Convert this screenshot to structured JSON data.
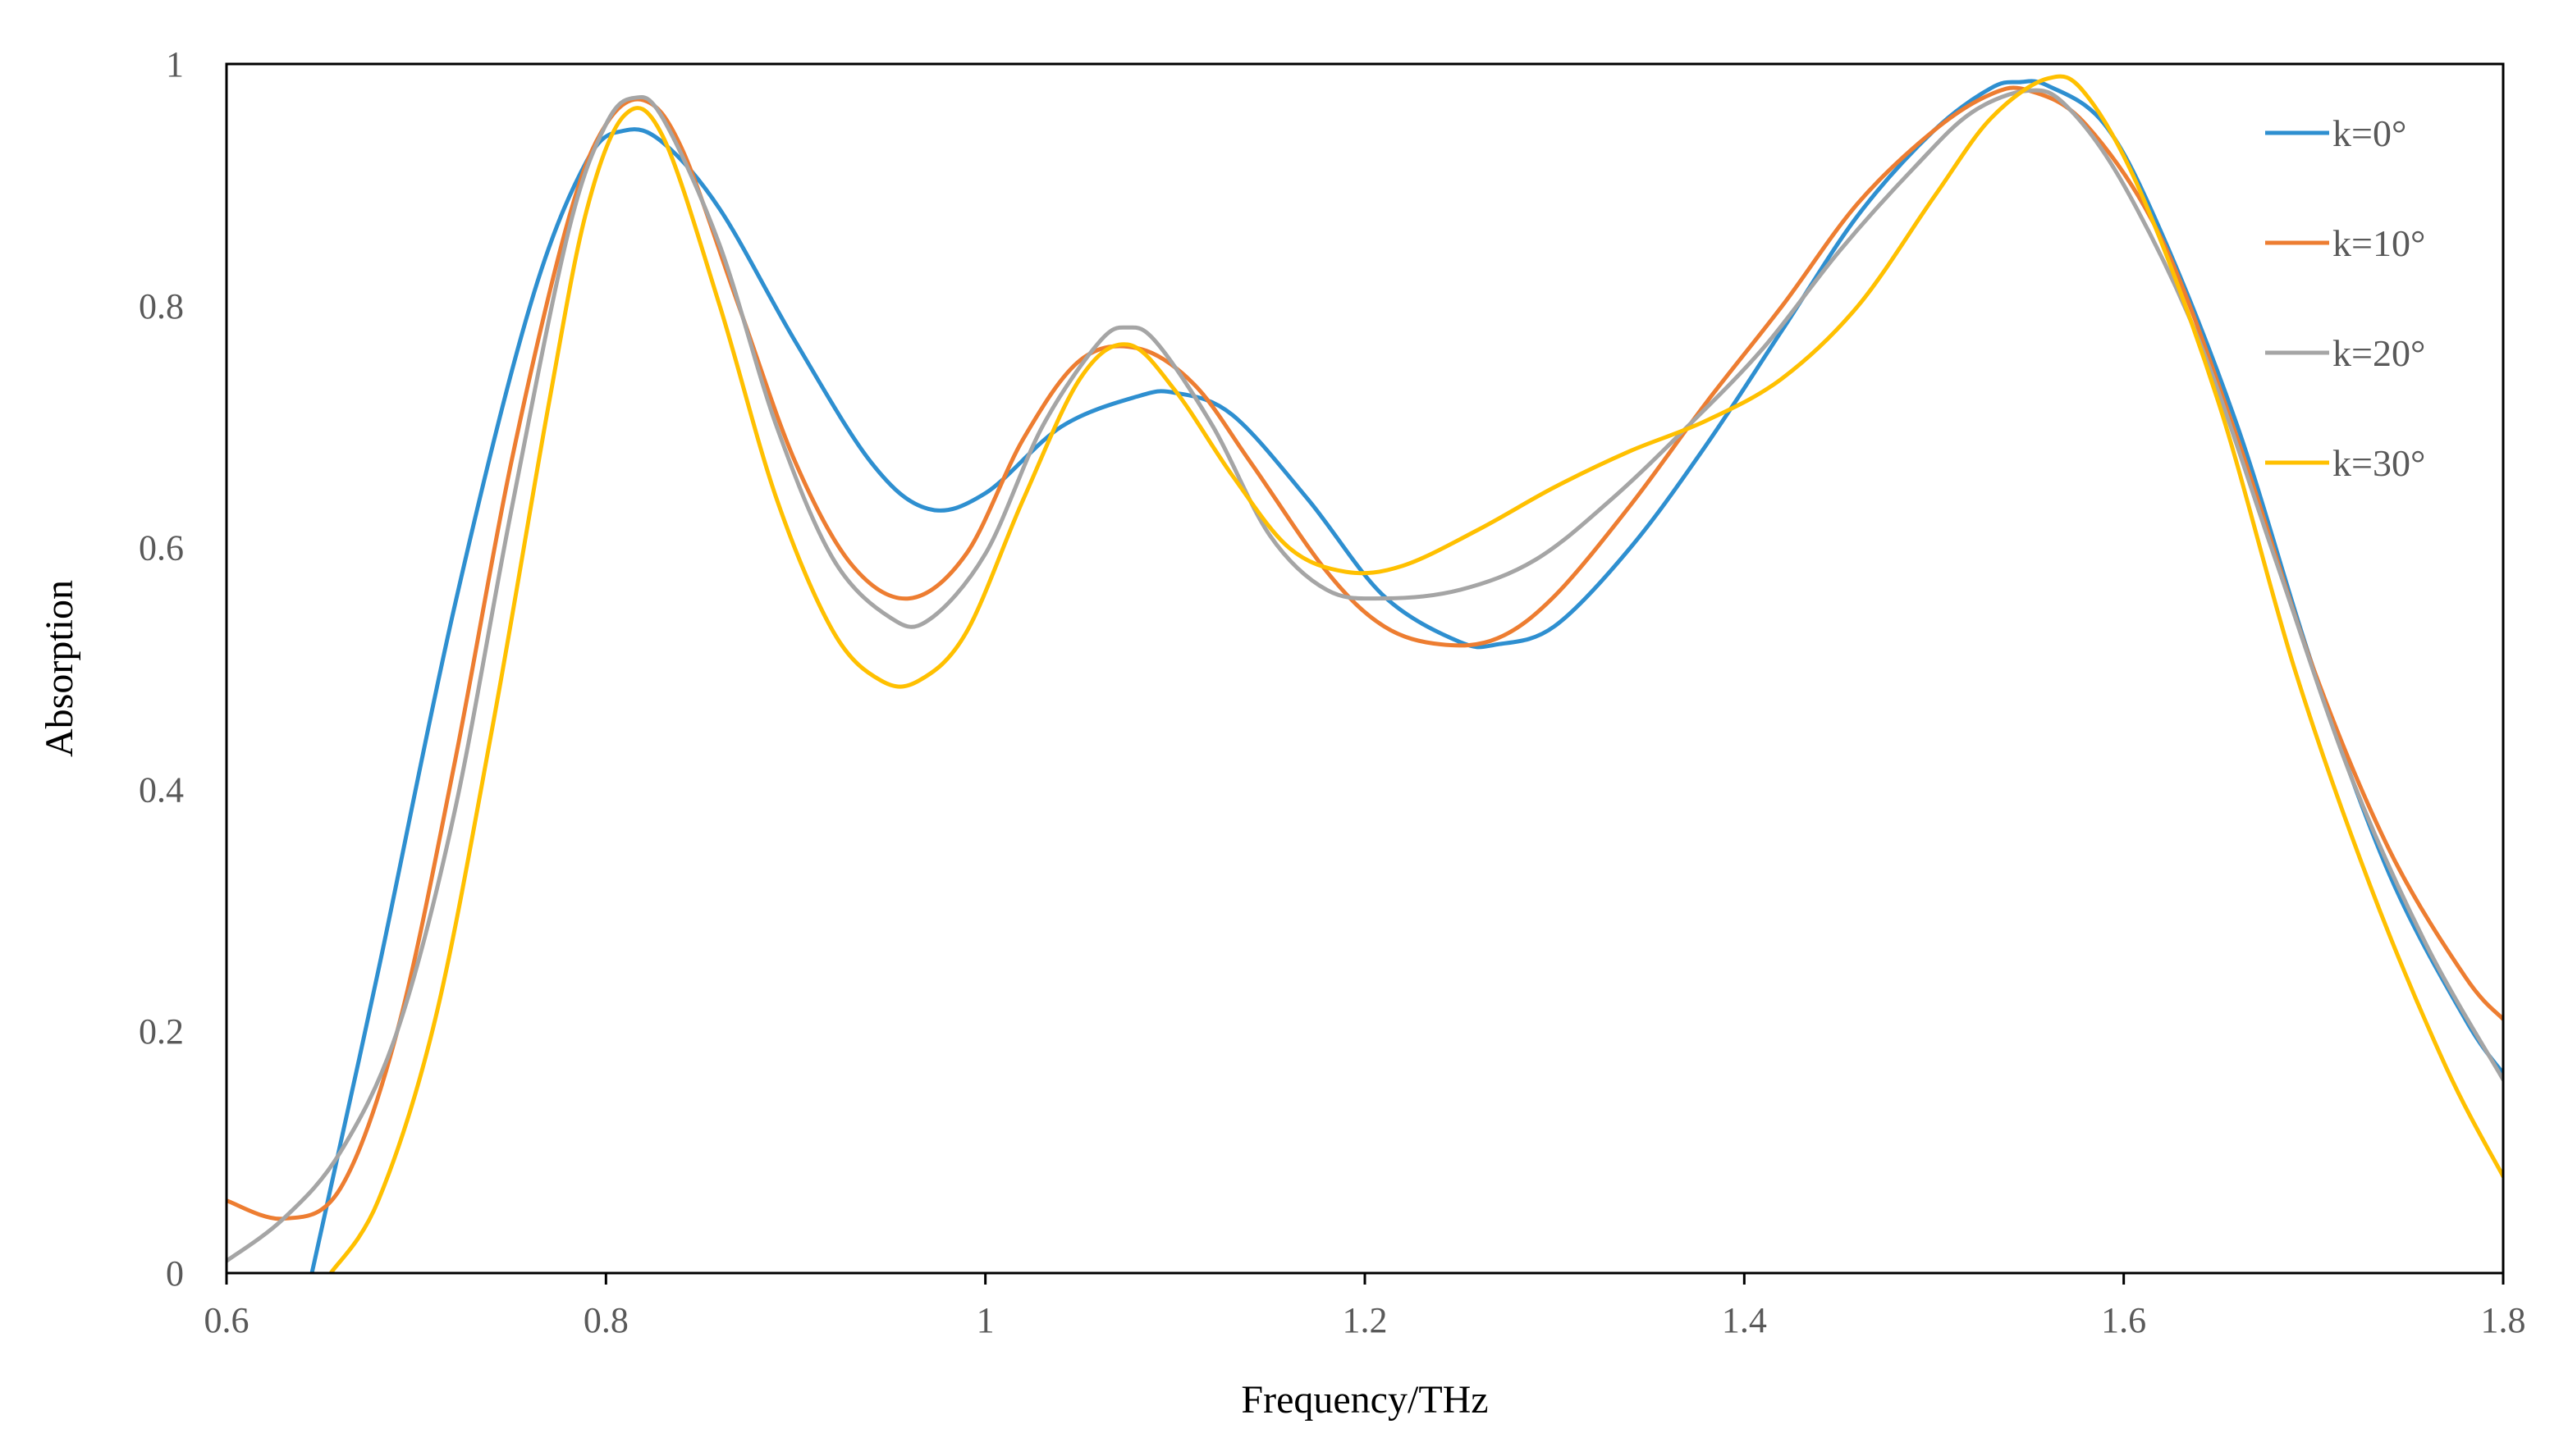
{
  "chart_data": {
    "type": "line",
    "title": "",
    "xlabel": "Frequency/THz",
    "ylabel": "Absorption",
    "xlim": [
      0.6,
      1.8
    ],
    "ylim": [
      0,
      1
    ],
    "x_ticks": [
      "0.6",
      "0.8",
      "1",
      "1.2",
      "1.4",
      "1.6",
      "1.8"
    ],
    "y_ticks": [
      "0",
      "0.2",
      "0.4",
      "0.6",
      "0.8",
      "1"
    ],
    "grid": false,
    "legend_position": "top-right",
    "series": [
      {
        "name": "k=0°",
        "color": "#2E8FD0",
        "points": [
          [
            0.645,
            0.0
          ],
          [
            0.68,
            0.25
          ],
          [
            0.72,
            0.55
          ],
          [
            0.76,
            0.8
          ],
          [
            0.79,
            0.92
          ],
          [
            0.81,
            0.945
          ],
          [
            0.83,
            0.935
          ],
          [
            0.86,
            0.88
          ],
          [
            0.9,
            0.77
          ],
          [
            0.94,
            0.67
          ],
          [
            0.97,
            0.632
          ],
          [
            1.0,
            0.645
          ],
          [
            1.04,
            0.7
          ],
          [
            1.08,
            0.725
          ],
          [
            1.1,
            0.728
          ],
          [
            1.13,
            0.71
          ],
          [
            1.17,
            0.64
          ],
          [
            1.21,
            0.56
          ],
          [
            1.25,
            0.522
          ],
          [
            1.27,
            0.52
          ],
          [
            1.3,
            0.535
          ],
          [
            1.34,
            0.6
          ],
          [
            1.38,
            0.685
          ],
          [
            1.42,
            0.78
          ],
          [
            1.46,
            0.875
          ],
          [
            1.5,
            0.945
          ],
          [
            1.53,
            0.98
          ],
          [
            1.545,
            0.985
          ],
          [
            1.56,
            0.982
          ],
          [
            1.59,
            0.95
          ],
          [
            1.62,
            0.86
          ],
          [
            1.66,
            0.7
          ],
          [
            1.7,
            0.5
          ],
          [
            1.74,
            0.33
          ],
          [
            1.78,
            0.21
          ],
          [
            1.8,
            0.165
          ]
        ]
      },
      {
        "name": "k=10°",
        "color": "#ED7D31",
        "points": [
          [
            0.6,
            0.06
          ],
          [
            0.63,
            0.045
          ],
          [
            0.66,
            0.07
          ],
          [
            0.69,
            0.2
          ],
          [
            0.72,
            0.42
          ],
          [
            0.75,
            0.67
          ],
          [
            0.78,
            0.87
          ],
          [
            0.8,
            0.95
          ],
          [
            0.82,
            0.97
          ],
          [
            0.84,
            0.93
          ],
          [
            0.87,
            0.8
          ],
          [
            0.9,
            0.67
          ],
          [
            0.93,
            0.585
          ],
          [
            0.96,
            0.558
          ],
          [
            0.99,
            0.595
          ],
          [
            1.02,
            0.69
          ],
          [
            1.05,
            0.755
          ],
          [
            1.08,
            0.765
          ],
          [
            1.11,
            0.735
          ],
          [
            1.14,
            0.67
          ],
          [
            1.18,
            0.58
          ],
          [
            1.21,
            0.535
          ],
          [
            1.24,
            0.52
          ],
          [
            1.27,
            0.525
          ],
          [
            1.3,
            0.56
          ],
          [
            1.34,
            0.635
          ],
          [
            1.38,
            0.72
          ],
          [
            1.42,
            0.8
          ],
          [
            1.46,
            0.885
          ],
          [
            1.5,
            0.945
          ],
          [
            1.53,
            0.975
          ],
          [
            1.55,
            0.978
          ],
          [
            1.58,
            0.95
          ],
          [
            1.62,
            0.855
          ],
          [
            1.66,
            0.69
          ],
          [
            1.7,
            0.5
          ],
          [
            1.74,
            0.35
          ],
          [
            1.78,
            0.245
          ],
          [
            1.8,
            0.21
          ]
        ]
      },
      {
        "name": "k=20°",
        "color": "#A5A5A5",
        "points": [
          [
            0.6,
            0.01
          ],
          [
            0.63,
            0.045
          ],
          [
            0.66,
            0.1
          ],
          [
            0.69,
            0.2
          ],
          [
            0.72,
            0.38
          ],
          [
            0.75,
            0.63
          ],
          [
            0.78,
            0.86
          ],
          [
            0.8,
            0.95
          ],
          [
            0.815,
            0.972
          ],
          [
            0.83,
            0.955
          ],
          [
            0.86,
            0.85
          ],
          [
            0.89,
            0.7
          ],
          [
            0.92,
            0.59
          ],
          [
            0.95,
            0.542
          ],
          [
            0.97,
            0.54
          ],
          [
            1.0,
            0.595
          ],
          [
            1.03,
            0.7
          ],
          [
            1.06,
            0.77
          ],
          [
            1.075,
            0.782
          ],
          [
            1.09,
            0.77
          ],
          [
            1.12,
            0.7
          ],
          [
            1.15,
            0.61
          ],
          [
            1.18,
            0.565
          ],
          [
            1.21,
            0.558
          ],
          [
            1.25,
            0.565
          ],
          [
            1.29,
            0.59
          ],
          [
            1.33,
            0.64
          ],
          [
            1.37,
            0.7
          ],
          [
            1.41,
            0.765
          ],
          [
            1.45,
            0.845
          ],
          [
            1.49,
            0.915
          ],
          [
            1.52,
            0.96
          ],
          [
            1.55,
            0.978
          ],
          [
            1.57,
            0.965
          ],
          [
            1.6,
            0.9
          ],
          [
            1.64,
            0.77
          ],
          [
            1.68,
            0.59
          ],
          [
            1.72,
            0.41
          ],
          [
            1.76,
            0.27
          ],
          [
            1.8,
            0.16
          ]
        ]
      },
      {
        "name": "k=30°",
        "color": "#FFC000",
        "points": [
          [
            0.655,
            0.0
          ],
          [
            0.68,
            0.06
          ],
          [
            0.71,
            0.21
          ],
          [
            0.74,
            0.45
          ],
          [
            0.77,
            0.72
          ],
          [
            0.79,
            0.88
          ],
          [
            0.81,
            0.958
          ],
          [
            0.83,
            0.94
          ],
          [
            0.86,
            0.8
          ],
          [
            0.89,
            0.64
          ],
          [
            0.92,
            0.53
          ],
          [
            0.945,
            0.49
          ],
          [
            0.965,
            0.49
          ],
          [
            0.99,
            0.53
          ],
          [
            1.02,
            0.64
          ],
          [
            1.05,
            0.74
          ],
          [
            1.075,
            0.768
          ],
          [
            1.1,
            0.73
          ],
          [
            1.13,
            0.66
          ],
          [
            1.16,
            0.6
          ],
          [
            1.19,
            0.58
          ],
          [
            1.22,
            0.585
          ],
          [
            1.26,
            0.615
          ],
          [
            1.3,
            0.65
          ],
          [
            1.34,
            0.68
          ],
          [
            1.38,
            0.705
          ],
          [
            1.42,
            0.74
          ],
          [
            1.46,
            0.8
          ],
          [
            1.5,
            0.89
          ],
          [
            1.53,
            0.955
          ],
          [
            1.56,
            0.988
          ],
          [
            1.58,
            0.975
          ],
          [
            1.61,
            0.89
          ],
          [
            1.65,
            0.72
          ],
          [
            1.69,
            0.5
          ],
          [
            1.73,
            0.32
          ],
          [
            1.77,
            0.17
          ],
          [
            1.8,
            0.08
          ]
        ]
      }
    ]
  }
}
